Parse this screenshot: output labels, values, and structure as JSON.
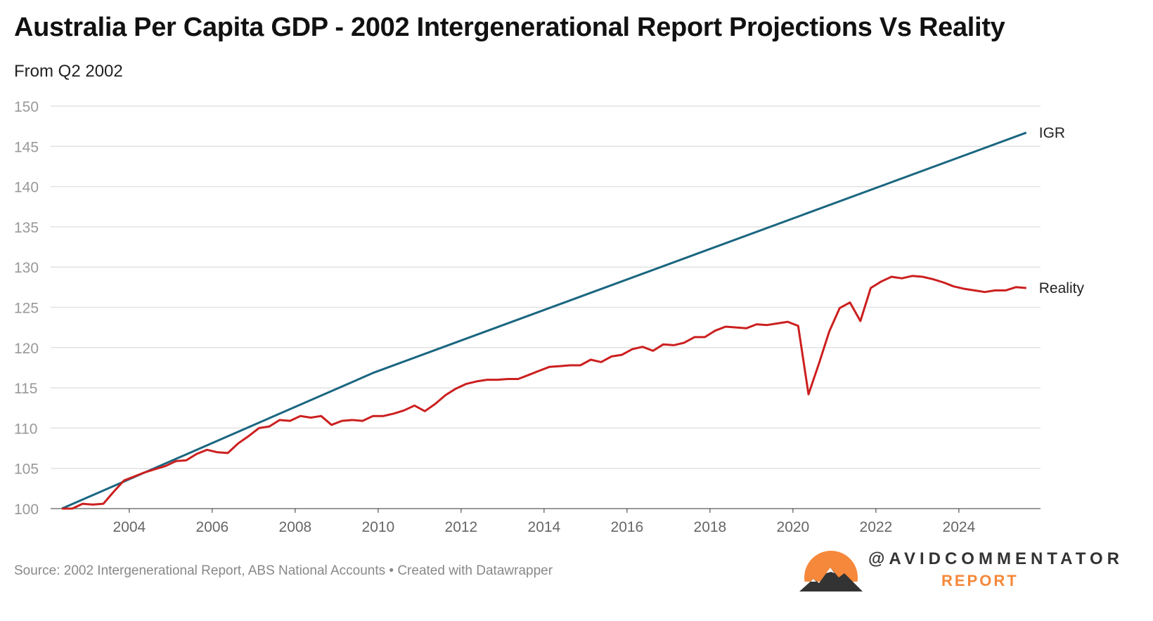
{
  "title": "Australia Per Capita GDP - 2002 Intergenerational Report Projections Vs Reality",
  "subtitle": "From Q2 2002",
  "source": "Source: 2002 Intergenerational Report, ABS National Accounts • Created with Datawrapper",
  "branding": {
    "handle": "@AVIDCOMMENTATOR",
    "report": "REPORT"
  },
  "chart_data": {
    "type": "line",
    "title": "Australia Per Capita GDP - 2002 Intergenerational Report Projections Vs Reality",
    "xlabel": "",
    "ylabel": "",
    "ylim": [
      100,
      150
    ],
    "xlim": [
      2002.375,
      2025.625
    ],
    "yticks": [
      "100",
      "105",
      "110",
      "115",
      "120",
      "125",
      "130",
      "135",
      "140",
      "145",
      "150"
    ],
    "xticks": [
      "2004",
      "2006",
      "2008",
      "2010",
      "2012",
      "2014",
      "2016",
      "2018",
      "2020",
      "2022",
      "2024"
    ],
    "grid": true,
    "series": [
      {
        "name": "IGR",
        "color": "#1a6680",
        "x": [
          2002.375,
          2009.9,
          2025.625
        ],
        "values": [
          100,
          116.9,
          146.7
        ]
      },
      {
        "name": "Reality",
        "color": "#cc1f1f",
        "x_start": 2002.375,
        "x_step": 0.25,
        "values": [
          100,
          100,
          100.6,
          100.5,
          100.6,
          102.1,
          103.5,
          104,
          104.5,
          104.9,
          105.3,
          105.9,
          106,
          106.8,
          107.3,
          107,
          106.9,
          108.1,
          109,
          110,
          110.2,
          111,
          110.9,
          111.5,
          111.3,
          111.5,
          110.4,
          110.9,
          111,
          110.9,
          111.5,
          111.5,
          111.8,
          112.2,
          112.8,
          112.1,
          113,
          114.1,
          114.9,
          115.5,
          115.8,
          116,
          116,
          116.1,
          116.1,
          116.6,
          117.1,
          117.6,
          117.7,
          117.8,
          117.8,
          118.5,
          118.2,
          118.9,
          119.1,
          119.8,
          120.1,
          119.6,
          120.4,
          120.3,
          120.6,
          121.3,
          121.3,
          122.1,
          122.6,
          122.5,
          122.4,
          122.9,
          122.8,
          123,
          123.2,
          122.7,
          114.2,
          118,
          122,
          124.9,
          125.6,
          123.3,
          127.4,
          128.2,
          128.8,
          128.6,
          128.9,
          128.8,
          128.5,
          128.1,
          127.6,
          127.3,
          127.1,
          126.9,
          127.1,
          127.1,
          127.5,
          127.4
        ]
      }
    ]
  }
}
